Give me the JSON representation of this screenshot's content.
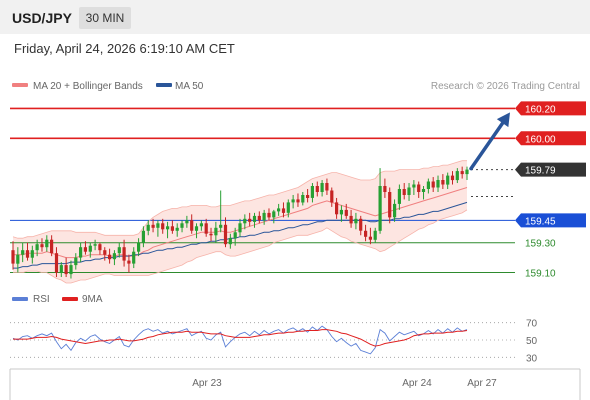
{
  "header": {
    "symbol": "USD/JPY",
    "timeframe": "30 MIN"
  },
  "timestamp": "Friday, April 24, 2026 6:19:10 AM CET",
  "price_panel": {
    "legend": [
      {
        "label": "MA 20 + Bollinger Bands",
        "color": "#f08080"
      },
      {
        "label": "MA 50",
        "color": "#2a5599"
      }
    ],
    "copyright": "Research © 2026 Trading Central",
    "levels": [
      {
        "value": 160.2,
        "label": "160.20",
        "kind": "resistance",
        "color": "#e02020"
      },
      {
        "value": 160.0,
        "label": "160.00",
        "kind": "resistance",
        "color": "#e02020"
      },
      {
        "value": 159.79,
        "label": "159.79",
        "kind": "last",
        "color": "#333333"
      },
      {
        "value": 159.45,
        "label": "159.45",
        "kind": "pivot",
        "color": "#1a4fd6"
      },
      {
        "value": 159.3,
        "label": "159.30",
        "kind": "support",
        "color": "#2e8b2e"
      },
      {
        "value": 159.1,
        "label": "159.10",
        "kind": "support",
        "color": "#2e8b2e"
      }
    ]
  },
  "rsi_panel": {
    "legend": [
      {
        "label": "RSI",
        "color": "#5b7fd6"
      },
      {
        "label": "9MA",
        "color": "#e02020"
      }
    ],
    "ticks": [
      "70",
      "50",
      "30"
    ]
  },
  "x_axis": {
    "labels": [
      "Apr 23",
      "Apr 24",
      "Apr 27"
    ]
  },
  "chart_data": {
    "type": "candlestick",
    "ylim": [
      159.03,
      160.29
    ],
    "candles": [
      [
        159.25,
        159.31,
        159.12,
        159.16
      ],
      [
        159.16,
        159.27,
        159.1,
        159.22
      ],
      [
        159.22,
        159.3,
        159.17,
        159.25
      ],
      [
        159.25,
        159.3,
        159.18,
        159.2
      ],
      [
        159.2,
        159.28,
        159.16,
        159.25
      ],
      [
        159.25,
        159.32,
        159.21,
        159.29
      ],
      [
        159.29,
        159.33,
        159.24,
        159.27
      ],
      [
        159.27,
        159.35,
        159.24,
        159.32
      ],
      [
        159.32,
        159.35,
        159.21,
        159.23
      ],
      [
        159.23,
        159.27,
        159.07,
        159.1
      ],
      [
        159.1,
        159.17,
        159.07,
        159.15
      ],
      [
        159.15,
        159.2,
        159.07,
        159.09
      ],
      [
        159.09,
        159.18,
        159.06,
        159.15
      ],
      [
        159.15,
        159.23,
        159.12,
        159.2
      ],
      [
        159.2,
        159.3,
        159.17,
        159.27
      ],
      [
        159.27,
        159.31,
        159.22,
        159.24
      ],
      [
        159.24,
        159.3,
        159.2,
        159.28
      ],
      [
        159.28,
        159.32,
        159.25,
        159.29
      ],
      [
        159.29,
        159.3,
        159.22,
        159.25
      ],
      [
        159.25,
        159.27,
        159.18,
        159.22
      ],
      [
        159.22,
        159.26,
        159.16,
        159.19
      ],
      [
        159.19,
        159.25,
        159.15,
        159.23
      ],
      [
        159.23,
        159.3,
        159.2,
        159.27
      ],
      [
        159.27,
        159.32,
        159.14,
        159.18
      ],
      [
        159.18,
        159.22,
        159.1,
        159.16
      ],
      [
        159.16,
        159.27,
        159.13,
        159.24
      ],
      [
        159.24,
        159.33,
        159.21,
        159.3
      ],
      [
        159.3,
        159.41,
        159.27,
        159.38
      ],
      [
        159.38,
        159.45,
        159.35,
        159.42
      ],
      [
        159.42,
        159.46,
        159.37,
        159.4
      ],
      [
        159.4,
        159.45,
        159.34,
        159.43
      ],
      [
        159.43,
        159.46,
        159.36,
        159.39
      ],
      [
        159.39,
        159.44,
        159.33,
        159.41
      ],
      [
        159.41,
        159.45,
        159.36,
        159.38
      ],
      [
        159.38,
        159.43,
        159.34,
        159.4
      ],
      [
        159.4,
        159.45,
        159.37,
        159.43
      ],
      [
        159.43,
        159.48,
        159.4,
        159.45
      ],
      [
        159.45,
        159.49,
        159.36,
        159.38
      ],
      [
        159.38,
        159.43,
        159.33,
        159.41
      ],
      [
        159.41,
        159.45,
        159.38,
        159.43
      ],
      [
        159.43,
        159.46,
        159.34,
        159.36
      ],
      [
        159.36,
        159.4,
        159.31,
        159.35
      ],
      [
        159.35,
        159.44,
        159.3,
        159.4
      ],
      [
        159.4,
        159.65,
        159.37,
        159.42
      ],
      [
        159.42,
        159.47,
        159.27,
        159.29
      ],
      [
        159.29,
        159.36,
        159.26,
        159.33
      ],
      [
        159.33,
        159.4,
        159.28,
        159.37
      ],
      [
        159.37,
        159.46,
        159.34,
        159.43
      ],
      [
        159.43,
        159.49,
        159.39,
        159.46
      ],
      [
        159.46,
        159.5,
        159.41,
        159.44
      ],
      [
        159.44,
        159.5,
        159.4,
        159.48
      ],
      [
        159.48,
        159.51,
        159.43,
        159.45
      ],
      [
        159.45,
        159.52,
        159.42,
        159.5
      ],
      [
        159.5,
        159.53,
        159.45,
        159.47
      ],
      [
        159.47,
        159.52,
        159.43,
        159.51
      ],
      [
        159.51,
        159.56,
        159.48,
        159.53
      ],
      [
        159.53,
        159.57,
        159.47,
        159.5
      ],
      [
        159.5,
        159.59,
        159.47,
        159.57
      ],
      [
        159.57,
        159.62,
        159.53,
        159.59
      ],
      [
        159.59,
        159.63,
        159.54,
        159.57
      ],
      [
        159.57,
        159.64,
        159.55,
        159.62
      ],
      [
        159.62,
        159.66,
        159.57,
        159.6
      ],
      [
        159.6,
        159.7,
        159.57,
        159.68
      ],
      [
        159.68,
        159.71,
        159.61,
        159.64
      ],
      [
        159.64,
        159.72,
        159.61,
        159.7
      ],
      [
        159.7,
        159.73,
        159.62,
        159.65
      ],
      [
        159.65,
        159.67,
        159.54,
        159.57
      ],
      [
        159.57,
        159.6,
        159.46,
        159.49
      ],
      [
        159.49,
        159.55,
        159.44,
        159.52
      ],
      [
        159.52,
        159.56,
        159.46,
        159.48
      ],
      [
        159.48,
        159.52,
        159.4,
        159.43
      ],
      [
        159.43,
        159.5,
        159.39,
        159.46
      ],
      [
        159.46,
        159.48,
        159.35,
        159.38
      ],
      [
        159.38,
        159.42,
        159.31,
        159.34
      ],
      [
        159.34,
        159.4,
        159.29,
        159.32
      ],
      [
        159.32,
        159.4,
        159.3,
        159.38
      ],
      [
        159.38,
        159.8,
        159.36,
        159.68
      ],
      [
        159.68,
        159.73,
        159.6,
        159.64
      ],
      [
        159.64,
        159.67,
        159.43,
        159.47
      ],
      [
        159.47,
        159.59,
        159.44,
        159.56
      ],
      [
        159.56,
        159.69,
        159.52,
        159.66
      ],
      [
        159.66,
        159.7,
        159.59,
        159.62
      ],
      [
        159.62,
        159.7,
        159.58,
        159.67
      ],
      [
        159.67,
        159.72,
        159.62,
        159.69
      ],
      [
        159.69,
        159.71,
        159.6,
        159.64
      ],
      [
        159.64,
        159.68,
        159.59,
        159.66
      ],
      [
        159.66,
        159.73,
        159.63,
        159.71
      ],
      [
        159.71,
        159.74,
        159.64,
        159.67
      ],
      [
        159.67,
        159.75,
        159.64,
        159.72
      ],
      [
        159.72,
        159.76,
        159.66,
        159.69
      ],
      [
        159.69,
        159.77,
        159.66,
        159.75
      ],
      [
        159.75,
        159.78,
        159.69,
        159.72
      ],
      [
        159.72,
        159.8,
        159.7,
        159.78
      ],
      [
        159.78,
        159.81,
        159.73,
        159.76
      ],
      [
        159.76,
        159.81,
        159.72,
        159.79
      ]
    ],
    "ma20": [
      159.22,
      159.22,
      159.22,
      159.23,
      159.23,
      159.23,
      159.23,
      159.24,
      159.23,
      159.22,
      159.21,
      159.2,
      159.2,
      159.2,
      159.21,
      159.21,
      159.22,
      159.22,
      159.22,
      159.22,
      159.21,
      159.21,
      159.22,
      159.22,
      159.21,
      159.21,
      159.22,
      159.24,
      159.25,
      159.27,
      159.28,
      159.29,
      159.3,
      159.31,
      159.32,
      159.33,
      159.34,
      159.35,
      159.36,
      159.37,
      159.37,
      159.37,
      159.37,
      159.38,
      159.37,
      159.37,
      159.38,
      159.39,
      159.4,
      159.41,
      159.42,
      159.43,
      159.44,
      159.45,
      159.46,
      159.47,
      159.48,
      159.49,
      159.5,
      159.51,
      159.52,
      159.53,
      159.55,
      159.56,
      159.57,
      159.58,
      159.57,
      159.56,
      159.55,
      159.54,
      159.53,
      159.52,
      159.51,
      159.5,
      159.49,
      159.48,
      159.49,
      159.5,
      159.51,
      159.52,
      159.53,
      159.54,
      159.55,
      159.56,
      159.57,
      159.58,
      159.59,
      159.6,
      159.61,
      159.62,
      159.63,
      159.64,
      159.65,
      159.66,
      159.67
    ],
    "bb_upper": [
      159.34,
      159.33,
      159.33,
      159.34,
      159.34,
      159.35,
      159.36,
      159.37,
      159.38,
      159.38,
      159.38,
      159.38,
      159.38,
      159.37,
      159.37,
      159.37,
      159.37,
      159.37,
      159.36,
      159.35,
      159.35,
      159.35,
      159.35,
      159.35,
      159.35,
      159.35,
      159.36,
      159.4,
      159.44,
      159.47,
      159.49,
      159.51,
      159.52,
      159.53,
      159.53,
      159.54,
      159.54,
      159.55,
      159.55,
      159.55,
      159.55,
      159.54,
      159.54,
      159.55,
      159.55,
      159.55,
      159.56,
      159.57,
      159.58,
      159.58,
      159.59,
      159.6,
      159.61,
      159.62,
      159.62,
      159.63,
      159.64,
      159.65,
      159.66,
      159.67,
      159.69,
      159.71,
      159.73,
      159.74,
      159.75,
      159.76,
      159.77,
      159.77,
      159.76,
      159.75,
      159.74,
      159.73,
      159.72,
      159.72,
      159.72,
      159.73,
      159.77,
      159.78,
      159.78,
      159.78,
      159.79,
      159.79,
      159.79,
      159.79,
      159.79,
      159.8,
      159.8,
      159.81,
      159.81,
      159.82,
      159.82,
      159.83,
      159.84,
      159.85,
      159.85
    ],
    "bb_lower": [
      159.1,
      159.1,
      159.1,
      159.11,
      159.11,
      159.11,
      159.1,
      159.1,
      159.08,
      159.06,
      159.05,
      159.03,
      159.03,
      159.04,
      159.05,
      159.05,
      159.06,
      159.07,
      159.08,
      159.09,
      159.09,
      159.08,
      159.08,
      159.08,
      159.08,
      159.08,
      159.08,
      159.08,
      159.08,
      159.09,
      159.1,
      159.11,
      159.12,
      159.13,
      159.14,
      159.15,
      159.17,
      159.18,
      159.2,
      159.21,
      159.22,
      159.23,
      159.24,
      159.24,
      159.22,
      159.21,
      159.21,
      159.22,
      159.23,
      159.24,
      159.25,
      159.26,
      159.27,
      159.28,
      159.3,
      159.31,
      159.32,
      159.33,
      159.34,
      159.35,
      159.35,
      159.35,
      159.36,
      159.37,
      159.38,
      159.4,
      159.38,
      159.36,
      159.34,
      159.33,
      159.31,
      159.3,
      159.29,
      159.28,
      159.27,
      159.26,
      159.24,
      159.25,
      159.27,
      159.29,
      159.31,
      159.33,
      159.35,
      159.37,
      159.39,
      159.4,
      159.42,
      159.43,
      159.45,
      159.46,
      159.47,
      159.48,
      159.49,
      159.5,
      159.52
    ],
    "ma50": [
      159.13,
      159.13,
      159.14,
      159.14,
      159.15,
      159.15,
      159.16,
      159.16,
      159.16,
      159.16,
      159.16,
      159.16,
      159.17,
      159.17,
      159.17,
      159.18,
      159.18,
      159.19,
      159.19,
      159.2,
      159.2,
      159.2,
      159.21,
      159.21,
      159.21,
      159.22,
      159.22,
      159.23,
      159.23,
      159.24,
      159.25,
      159.25,
      159.26,
      159.26,
      159.27,
      159.27,
      159.28,
      159.29,
      159.29,
      159.3,
      159.3,
      159.31,
      159.31,
      159.32,
      159.32,
      159.33,
      159.33,
      159.34,
      159.34,
      159.35,
      159.35,
      159.36,
      159.37,
      159.37,
      159.38,
      159.38,
      159.39,
      159.4,
      159.4,
      159.41,
      159.42,
      159.42,
      159.43,
      159.44,
      159.44,
      159.45,
      159.45,
      159.45,
      159.45,
      159.45,
      159.45,
      159.45,
      159.45,
      159.45,
      159.44,
      159.44,
      159.45,
      159.45,
      159.45,
      159.46,
      159.46,
      159.47,
      159.47,
      159.48,
      159.49,
      159.49,
      159.5,
      159.51,
      159.51,
      159.52,
      159.53,
      159.54,
      159.55,
      159.56,
      159.57
    ],
    "projection": {
      "from": 159.79,
      "to": 160.2
    },
    "rsi": {
      "ylim": [
        20,
        80
      ],
      "ticks": [
        70,
        50,
        30
      ],
      "rsi": [
        52,
        50,
        54,
        55,
        52,
        55,
        57,
        55,
        58,
        48,
        40,
        45,
        38,
        47,
        52,
        49,
        54,
        56,
        51,
        48,
        46,
        50,
        54,
        44,
        42,
        50,
        56,
        61,
        63,
        60,
        62,
        58,
        60,
        57,
        59,
        61,
        63,
        55,
        58,
        60,
        52,
        50,
        56,
        59,
        42,
        48,
        53,
        57,
        59,
        55,
        60,
        56,
        61,
        57,
        60,
        62,
        58,
        62,
        64,
        60,
        63,
        59,
        65,
        61,
        66,
        62,
        54,
        48,
        52,
        47,
        43,
        46,
        38,
        36,
        34,
        41,
        62,
        58,
        49,
        54,
        59,
        56,
        58,
        60,
        55,
        57,
        61,
        57,
        62,
        58,
        63,
        59,
        64,
        60,
        62
      ],
      "ma9": [
        51,
        51,
        51,
        51,
        52,
        53,
        53,
        53,
        54,
        53,
        51,
        50,
        49,
        48,
        47,
        46,
        47,
        48,
        49,
        49,
        50,
        50,
        51,
        50,
        49,
        49,
        50,
        51,
        53,
        54,
        56,
        57,
        58,
        59,
        59,
        59,
        60,
        59,
        59,
        59,
        58,
        57,
        57,
        57,
        55,
        54,
        53,
        53,
        53,
        53,
        54,
        55,
        56,
        56,
        57,
        58,
        58,
        59,
        59,
        60,
        60,
        61,
        61,
        61,
        62,
        62,
        61,
        60,
        58,
        57,
        55,
        53,
        51,
        48,
        45,
        43,
        44,
        46,
        47,
        48,
        49,
        50,
        52,
        55,
        56,
        57,
        57,
        58,
        58,
        58,
        59,
        59,
        60,
        60,
        61
      ]
    }
  }
}
